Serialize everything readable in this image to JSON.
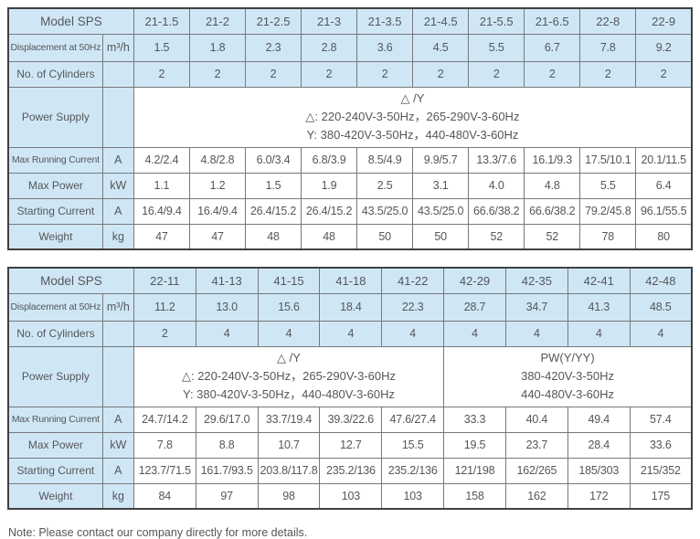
{
  "note": "Note: Please contact our company directly for more details.",
  "colors": {
    "header_fill": "#cfe7f5",
    "border_inner": "#77787b",
    "border_outer": "#414042",
    "text": "#55565a"
  },
  "tables": [
    {
      "header_label": "Model SPS",
      "models": [
        "21-1.5",
        "21-2",
        "21-2.5",
        "21-3",
        "21-3.5",
        "21-4.5",
        "21-5.5",
        "21-6.5",
        "22-8",
        "22-9"
      ],
      "rows": [
        {
          "type": "data",
          "label": "Displacement at 50Hz",
          "unit": "m³/h",
          "small": true,
          "shaded": true,
          "values": [
            "1.5",
            "1.8",
            "2.3",
            "2.8",
            "3.6",
            "4.5",
            "5.5",
            "6.7",
            "7.8",
            "9.2"
          ]
        },
        {
          "type": "data",
          "label": "No. of Cylinders",
          "unit": "",
          "shaded": true,
          "values": [
            "2",
            "2",
            "2",
            "2",
            "2",
            "2",
            "2",
            "2",
            "2",
            "2"
          ]
        },
        {
          "type": "power",
          "label": "Power Supply",
          "unit": "",
          "cells": [
            {
              "span": 10,
              "lines": [
                "△ /Y",
                "△:  220-240V-3-50Hz，265-290V-3-60Hz",
                "Y:  380-420V-3-50Hz，440-480V-3-60Hz"
              ]
            }
          ]
        },
        {
          "type": "data",
          "label": "Max Running Current",
          "unit": "A",
          "small": true,
          "values": [
            "4.2/2.4",
            "4.8/2.8",
            "6.0/3.4",
            "6.8/3.9",
            "8.5/4.9",
            "9.9/5.7",
            "13.3/7.6",
            "16.1/9.3",
            "17.5/10.1",
            "20.1/11.5"
          ]
        },
        {
          "type": "data",
          "label": "Max Power",
          "unit": "kW",
          "values": [
            "1.1",
            "1.2",
            "1.5",
            "1.9",
            "2.5",
            "3.1",
            "4.0",
            "4.8",
            "5.5",
            "6.4"
          ]
        },
        {
          "type": "data",
          "label": "Starting Current",
          "unit": "A",
          "values": [
            "16.4/9.4",
            "16.4/9.4",
            "26.4/15.2",
            "26.4/15.2",
            "43.5/25.0",
            "43.5/25.0",
            "66.6/38.2",
            "66.6/38.2",
            "79.2/45.8",
            "96.1/55.5"
          ]
        },
        {
          "type": "data",
          "label": "Weight",
          "unit": "kg",
          "values": [
            "47",
            "47",
            "48",
            "48",
            "50",
            "50",
            "52",
            "52",
            "78",
            "80"
          ]
        }
      ]
    },
    {
      "header_label": "Model SPS",
      "models": [
        "22-11",
        "41-13",
        "41-15",
        "41-18",
        "41-22",
        "42-29",
        "42-35",
        "42-41",
        "42-48"
      ],
      "rows": [
        {
          "type": "data",
          "label": "Displacement at 50Hz",
          "unit": "m³/h",
          "small": true,
          "shaded": true,
          "values": [
            "11.2",
            "13.0",
            "15.6",
            "18.4",
            "22.3",
            "28.7",
            "34.7",
            "41.3",
            "48.5"
          ]
        },
        {
          "type": "data",
          "label": "No. of Cylinders",
          "unit": "",
          "shaded": true,
          "values": [
            "2",
            "4",
            "4",
            "4",
            "4",
            "4",
            "4",
            "4",
            "4"
          ]
        },
        {
          "type": "power",
          "label": "Power Supply",
          "unit": "",
          "cells": [
            {
              "span": 5,
              "lines": [
                "△ /Y",
                "△:  220-240V-3-50Hz，265-290V-3-60Hz",
                "Y:  380-420V-3-50Hz，440-480V-3-60Hz"
              ]
            },
            {
              "span": 4,
              "lines": [
                "PW(Y/YY)",
                "380-420V-3-50Hz",
                "440-480V-3-60Hz"
              ]
            }
          ]
        },
        {
          "type": "data",
          "label": "Max Running Current",
          "unit": "A",
          "small": true,
          "values": [
            "24.7/14.2",
            "29.6/17.0",
            "33.7/19.4",
            "39.3/22.6",
            "47.6/27.4",
            "33.3",
            "40.4",
            "49.4",
            "57.4"
          ]
        },
        {
          "type": "data",
          "label": "Max Power",
          "unit": "kW",
          "values": [
            "7.8",
            "8.8",
            "10.7",
            "12.7",
            "15.5",
            "19.5",
            "23.7",
            "28.4",
            "33.6"
          ]
        },
        {
          "type": "data",
          "label": "Starting Current",
          "unit": "A",
          "values": [
            "123.7/71.5",
            "161.7/93.5",
            "203.8/117.8",
            "235.2/136",
            "235.2/136",
            "121/198",
            "162/265",
            "185/303",
            "215/352"
          ]
        },
        {
          "type": "data",
          "label": "Weight",
          "unit": "kg",
          "values": [
            "84",
            "97",
            "98",
            "103",
            "103",
            "158",
            "162",
            "172",
            "175"
          ]
        }
      ]
    }
  ]
}
